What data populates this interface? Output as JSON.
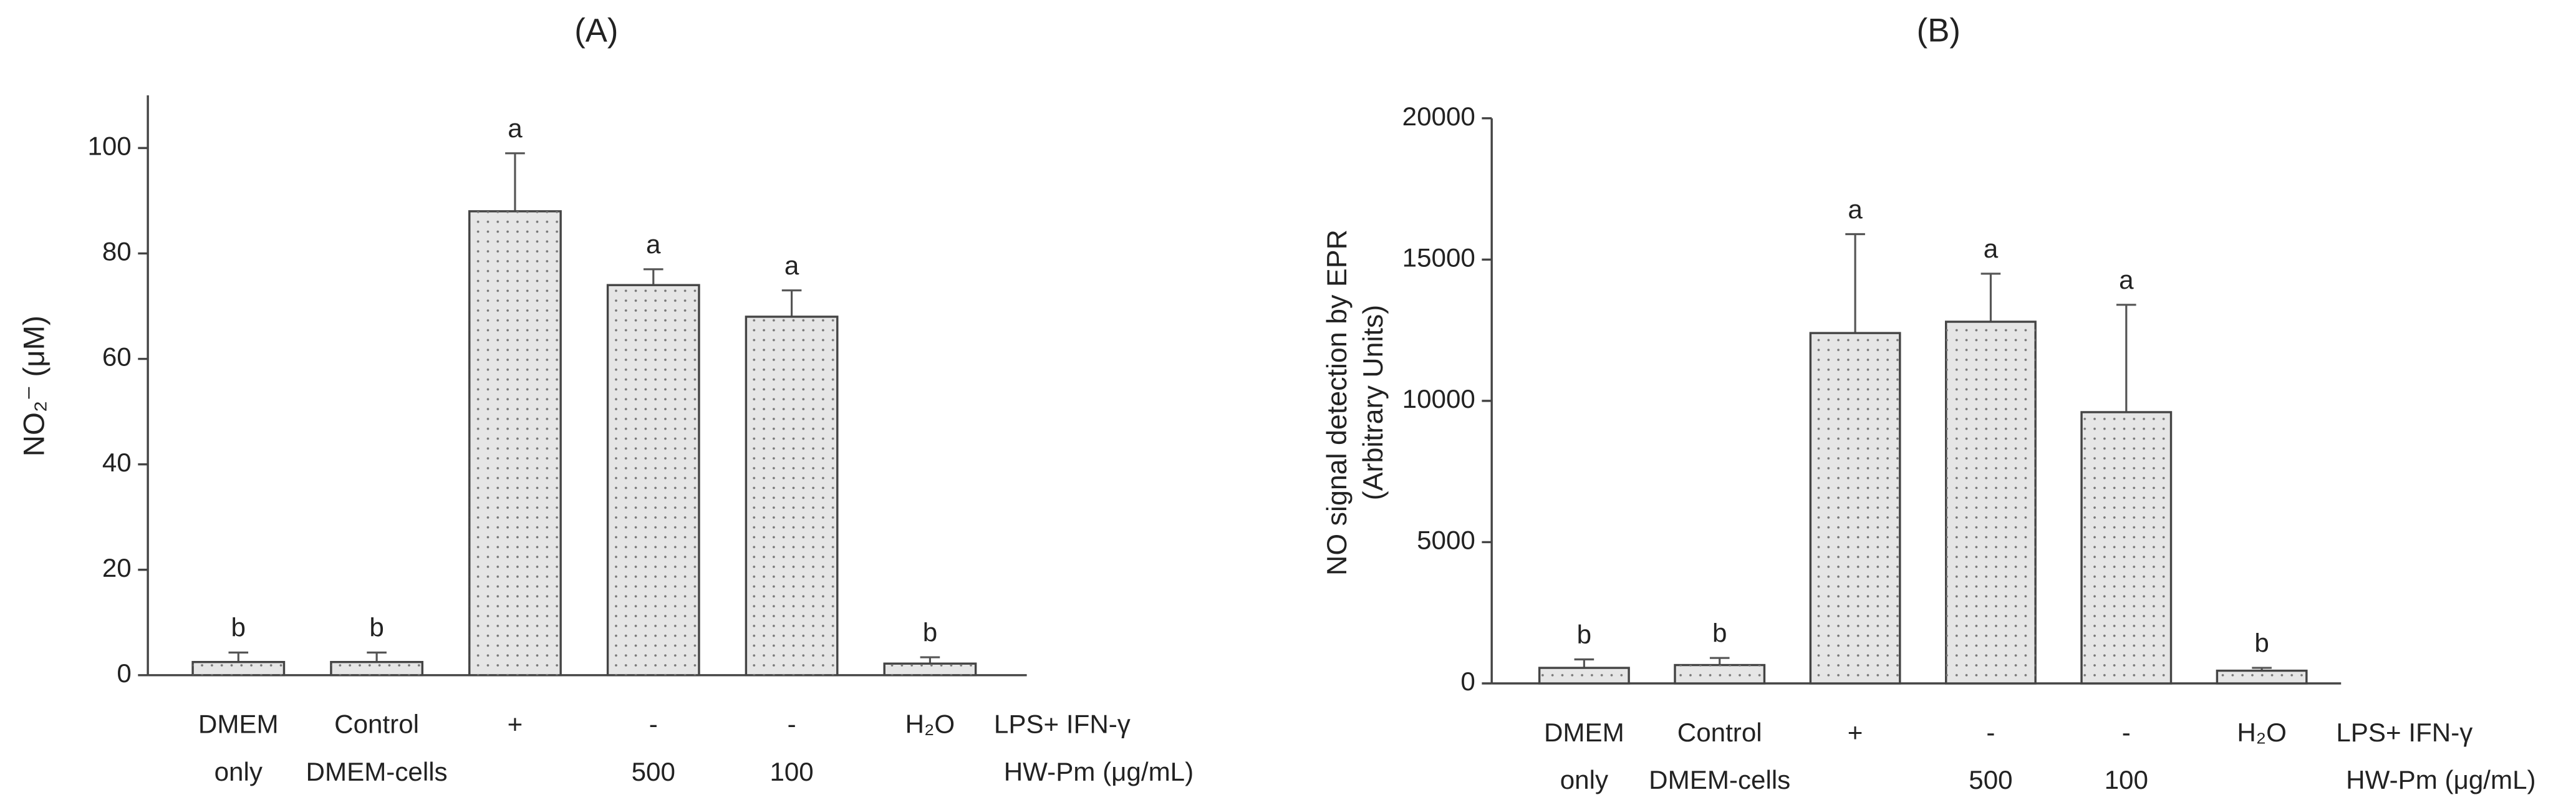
{
  "chart_data": [
    {
      "type": "bar",
      "title": "(A)",
      "ylabel": "NO₂⁻ (μM)",
      "categories": [
        "DMEM",
        "Control",
        "+",
        "-",
        "-",
        "H₂O"
      ],
      "categories_row2": [
        "only",
        "DMEM-cells",
        null,
        "500",
        "100",
        null
      ],
      "row_labels": [
        "LPS+ IFN-γ",
        "HW-Pm (μg/mL)"
      ],
      "values": [
        2.5,
        2.5,
        88,
        74,
        68,
        2.2
      ],
      "errors": [
        1.8,
        1.8,
        11,
        3,
        5,
        1.2
      ],
      "annotations": [
        "b",
        "b",
        "a",
        "a",
        "a",
        "b"
      ],
      "color": "#e6e6e6",
      "ylim": [
        0,
        110
      ],
      "yticks": [
        0,
        20,
        40,
        60,
        80,
        100
      ]
    },
    {
      "type": "bar",
      "title": "(B)",
      "ylabel": [
        "NO signal detection by EPR",
        "(Arbitrary Units)"
      ],
      "categories": [
        "DMEM",
        "Control",
        "+",
        "-",
        "-",
        "H₂O"
      ],
      "categories_row2": [
        "only",
        "DMEM-cells",
        null,
        "500",
        "100",
        null
      ],
      "row_labels": [
        "LPS+ IFN-γ",
        "HW-Pm (μg/mL)"
      ],
      "values": [
        550,
        650,
        12400,
        12800,
        9600,
        450
      ],
      "errors": [
        300,
        250,
        3500,
        1700,
        3800,
        100
      ],
      "annotations": [
        "b",
        "b",
        "a",
        "a",
        "a",
        "b"
      ],
      "color": "#e6e6e6",
      "ylim": [
        0,
        20000
      ],
      "yticks": [
        0,
        5000,
        10000,
        15000,
        20000
      ]
    }
  ]
}
